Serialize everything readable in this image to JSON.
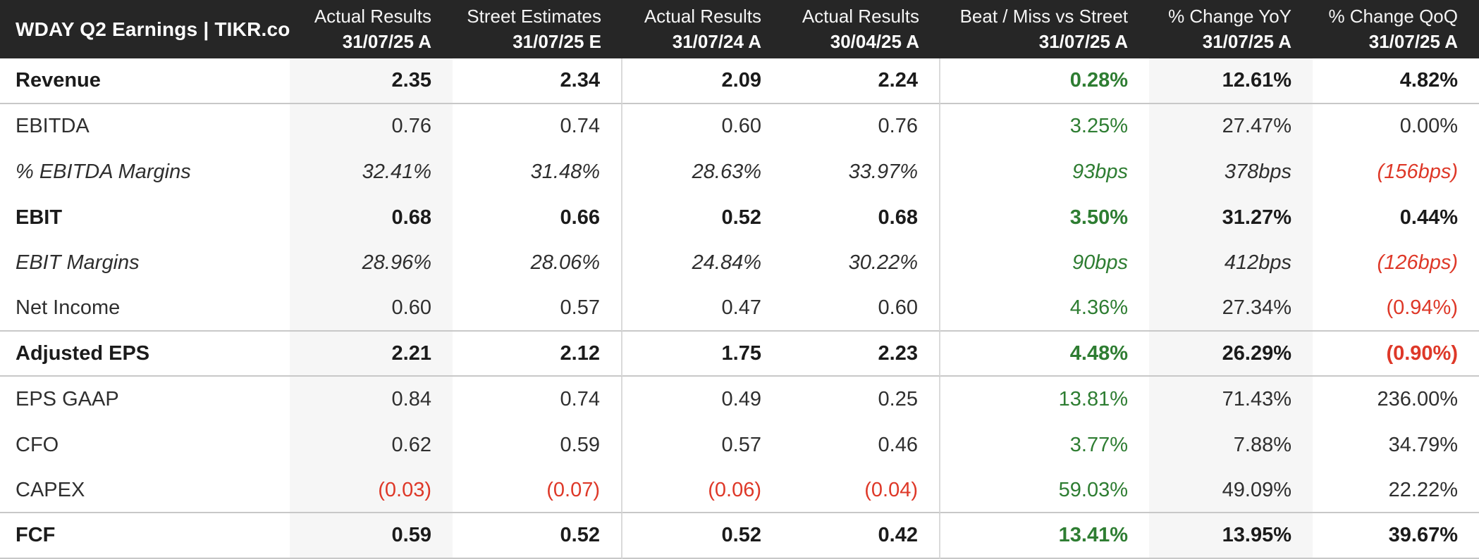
{
  "title": "WDAY Q2 Earnings | TIKR.com",
  "columns": [
    {
      "line1": "Actual Results",
      "line2": "31/07/25 A"
    },
    {
      "line1": "Street Estimates",
      "line2": "31/07/25 E"
    },
    {
      "line1": "Actual Results",
      "line2": "31/07/24 A"
    },
    {
      "line1": "Actual Results",
      "line2": "30/04/25 A"
    },
    {
      "line1": "Beat / Miss vs Street",
      "line2": "31/07/25 A"
    },
    {
      "line1": "% Change YoY",
      "line2": "31/07/25 A"
    },
    {
      "line1": "% Change QoQ",
      "line2": "31/07/25 A"
    }
  ],
  "rows": [
    {
      "id": "revenue",
      "label": "Revenue",
      "style": "bold",
      "divider_below": true,
      "values": [
        {
          "text": "2.35",
          "tone": "default"
        },
        {
          "text": "2.34",
          "tone": "default"
        },
        {
          "text": "2.09",
          "tone": "default"
        },
        {
          "text": "2.24",
          "tone": "default"
        },
        {
          "text": "0.28%",
          "tone": "green"
        },
        {
          "text": "12.61%",
          "tone": "default"
        },
        {
          "text": "4.82%",
          "tone": "default"
        }
      ]
    },
    {
      "id": "ebitda",
      "label": "EBITDA",
      "style": "regular",
      "divider_below": false,
      "values": [
        {
          "text": "0.76",
          "tone": "default"
        },
        {
          "text": "0.74",
          "tone": "default"
        },
        {
          "text": "0.60",
          "tone": "default"
        },
        {
          "text": "0.76",
          "tone": "default"
        },
        {
          "text": "3.25%",
          "tone": "green"
        },
        {
          "text": "27.47%",
          "tone": "default"
        },
        {
          "text": "0.00%",
          "tone": "default"
        }
      ]
    },
    {
      "id": "ebitda-margins",
      "label": "% EBITDA Margins",
      "style": "italic",
      "divider_below": false,
      "values": [
        {
          "text": "32.41%",
          "tone": "default"
        },
        {
          "text": "31.48%",
          "tone": "default"
        },
        {
          "text": "28.63%",
          "tone": "default"
        },
        {
          "text": "33.97%",
          "tone": "default"
        },
        {
          "text": "93bps",
          "tone": "green"
        },
        {
          "text": "378bps",
          "tone": "default"
        },
        {
          "text": "(156bps)",
          "tone": "red"
        }
      ]
    },
    {
      "id": "ebit",
      "label": "EBIT",
      "style": "bold",
      "divider_below": false,
      "values": [
        {
          "text": "0.68",
          "tone": "default"
        },
        {
          "text": "0.66",
          "tone": "default"
        },
        {
          "text": "0.52",
          "tone": "default"
        },
        {
          "text": "0.68",
          "tone": "default"
        },
        {
          "text": "3.50%",
          "tone": "green"
        },
        {
          "text": "31.27%",
          "tone": "default"
        },
        {
          "text": "0.44%",
          "tone": "default"
        }
      ]
    },
    {
      "id": "ebit-margins",
      "label": "EBIT Margins",
      "style": "italic",
      "divider_below": false,
      "values": [
        {
          "text": "28.96%",
          "tone": "default"
        },
        {
          "text": "28.06%",
          "tone": "default"
        },
        {
          "text": "24.84%",
          "tone": "default"
        },
        {
          "text": "30.22%",
          "tone": "default"
        },
        {
          "text": "90bps",
          "tone": "green"
        },
        {
          "text": "412bps",
          "tone": "default"
        },
        {
          "text": "(126bps)",
          "tone": "red"
        }
      ]
    },
    {
      "id": "net-income",
      "label": "Net Income",
      "style": "regular",
      "divider_below": true,
      "values": [
        {
          "text": "0.60",
          "tone": "default"
        },
        {
          "text": "0.57",
          "tone": "default"
        },
        {
          "text": "0.47",
          "tone": "default"
        },
        {
          "text": "0.60",
          "tone": "default"
        },
        {
          "text": "4.36%",
          "tone": "green"
        },
        {
          "text": "27.34%",
          "tone": "default"
        },
        {
          "text": "(0.94%)",
          "tone": "red"
        }
      ]
    },
    {
      "id": "adjusted-eps",
      "label": "Adjusted EPS",
      "style": "bold",
      "divider_below": true,
      "values": [
        {
          "text": "2.21",
          "tone": "default"
        },
        {
          "text": "2.12",
          "tone": "default"
        },
        {
          "text": "1.75",
          "tone": "default"
        },
        {
          "text": "2.23",
          "tone": "default"
        },
        {
          "text": "4.48%",
          "tone": "green"
        },
        {
          "text": "26.29%",
          "tone": "default"
        },
        {
          "text": "(0.90%)",
          "tone": "red"
        }
      ]
    },
    {
      "id": "eps-gaap",
      "label": "EPS GAAP",
      "style": "regular",
      "divider_below": false,
      "values": [
        {
          "text": "0.84",
          "tone": "default"
        },
        {
          "text": "0.74",
          "tone": "default"
        },
        {
          "text": "0.49",
          "tone": "default"
        },
        {
          "text": "0.25",
          "tone": "default"
        },
        {
          "text": "13.81%",
          "tone": "green"
        },
        {
          "text": "71.43%",
          "tone": "default"
        },
        {
          "text": "236.00%",
          "tone": "default"
        }
      ]
    },
    {
      "id": "cfo",
      "label": "CFO",
      "style": "regular",
      "divider_below": false,
      "values": [
        {
          "text": "0.62",
          "tone": "default"
        },
        {
          "text": "0.59",
          "tone": "default"
        },
        {
          "text": "0.57",
          "tone": "default"
        },
        {
          "text": "0.46",
          "tone": "default"
        },
        {
          "text": "3.77%",
          "tone": "green"
        },
        {
          "text": "7.88%",
          "tone": "default"
        },
        {
          "text": "34.79%",
          "tone": "default"
        }
      ]
    },
    {
      "id": "capex",
      "label": "CAPEX",
      "style": "regular",
      "divider_below": true,
      "values": [
        {
          "text": "(0.03)",
          "tone": "red"
        },
        {
          "text": "(0.07)",
          "tone": "red"
        },
        {
          "text": "(0.06)",
          "tone": "red"
        },
        {
          "text": "(0.04)",
          "tone": "red"
        },
        {
          "text": "59.03%",
          "tone": "green"
        },
        {
          "text": "49.09%",
          "tone": "default"
        },
        {
          "text": "22.22%",
          "tone": "default"
        }
      ]
    },
    {
      "id": "fcf",
      "label": "FCF",
      "style": "bold",
      "divider_below": true,
      "values": [
        {
          "text": "0.59",
          "tone": "default"
        },
        {
          "text": "0.52",
          "tone": "default"
        },
        {
          "text": "0.52",
          "tone": "default"
        },
        {
          "text": "0.42",
          "tone": "default"
        },
        {
          "text": "13.41%",
          "tone": "green"
        },
        {
          "text": "13.95%",
          "tone": "default"
        },
        {
          "text": "39.67%",
          "tone": "default"
        }
      ]
    }
  ],
  "layout_flags": {
    "shaded_value_columns": [
      1,
      6
    ],
    "vertical_border_after_value_columns": [
      2,
      4
    ]
  },
  "colors": {
    "header_bg": "#262626",
    "shade": "#f6f6f6",
    "green": "#2e7d32",
    "red": "#de3828"
  }
}
